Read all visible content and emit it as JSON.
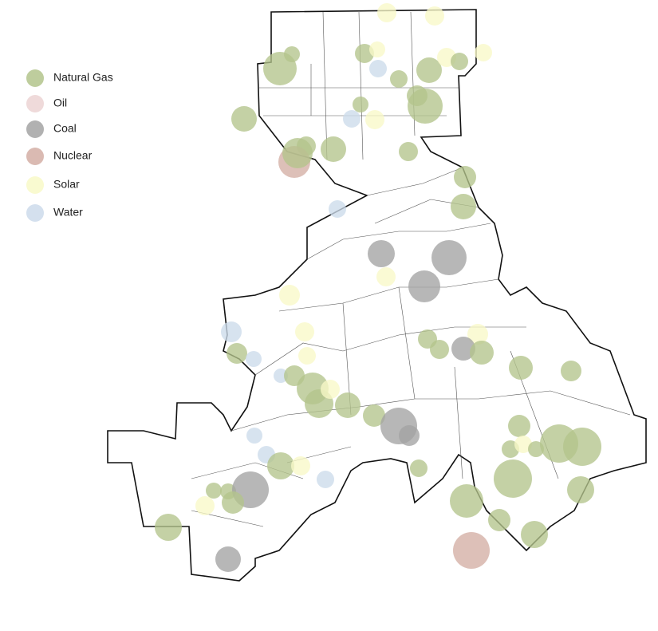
{
  "legend": {
    "items": [
      {
        "label": "Natural Gas",
        "color": "#b3c48c"
      },
      {
        "label": "Oil",
        "color": "#ecd3d3"
      },
      {
        "label": "Coal",
        "color": "#a3a3a3"
      },
      {
        "label": "Nuclear",
        "color": "#d4aea4"
      },
      {
        "label": "Solar",
        "color": "#f8f9c8"
      },
      {
        "label": "Water",
        "color": "#ccdbeb"
      }
    ]
  }
}
